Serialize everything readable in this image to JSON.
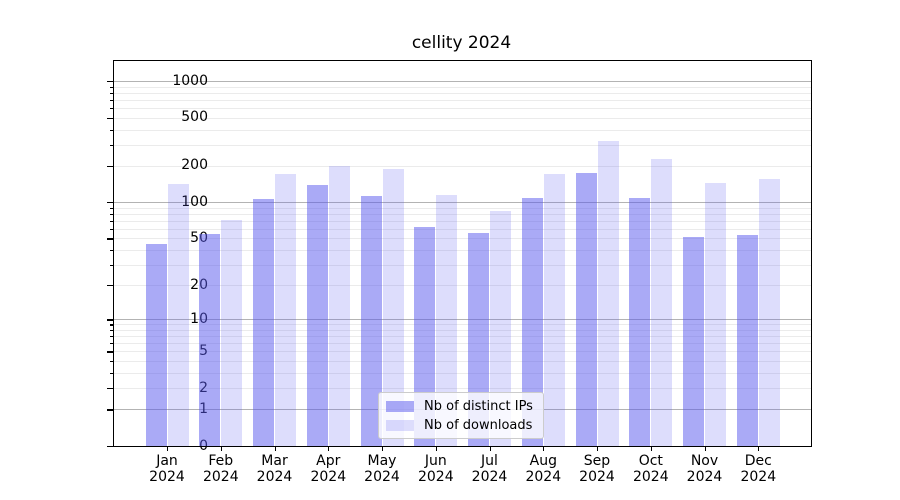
{
  "chart": {
    "title": "cellity 2024",
    "legend": {
      "position": "lower center",
      "items": [
        {
          "label": "Nb of distinct IPs",
          "series": "ips"
        },
        {
          "label": "Nb of downloads",
          "series": "downloads"
        }
      ]
    }
  },
  "chart_data": {
    "type": "bar",
    "title": "cellity 2024",
    "categories": [
      "Jan 2024",
      "Feb 2024",
      "Mar 2024",
      "Apr 2024",
      "May 2024",
      "Jun 2024",
      "Jul 2024",
      "Aug 2024",
      "Sep 2024",
      "Oct 2024",
      "Nov 2024",
      "Dec 2024"
    ],
    "series": [
      {
        "name": "Nb of distinct IPs",
        "values": [
          45,
          54,
          107,
          139,
          112,
          62,
          55,
          108,
          176,
          109,
          51,
          53
        ]
      },
      {
        "name": "Nb of downloads",
        "values": [
          143,
          71,
          172,
          200,
          189,
          115,
          85,
          172,
          320,
          230,
          144,
          155
        ]
      }
    ],
    "xlabel": "",
    "ylabel": "",
    "yscale": "log(1+x)",
    "ylim": [
      0,
      1500
    ],
    "y_ticks": [
      {
        "value": 1000,
        "label": "1000"
      },
      {
        "value": 500,
        "label": "500"
      },
      {
        "value": 200,
        "label": "200"
      },
      {
        "value": 100,
        "label": "100"
      },
      {
        "value": 50,
        "label": "50"
      },
      {
        "value": 20,
        "label": "20"
      },
      {
        "value": 10,
        "label": "10"
      },
      {
        "value": 5,
        "label": "5"
      },
      {
        "value": 2,
        "label": "2"
      },
      {
        "value": 1,
        "label": "1"
      },
      {
        "value": 0,
        "label": "0"
      }
    ],
    "minor_gridline_values": [
      2,
      3,
      4,
      5,
      6,
      7,
      8,
      9,
      20,
      30,
      40,
      50,
      60,
      70,
      80,
      90,
      200,
      300,
      400,
      500,
      600,
      700,
      800,
      900
    ],
    "major_gridline_values": [
      1,
      10,
      100,
      1000
    ],
    "grid": "horizontal major+minor",
    "legend_position": "lower center inside plot"
  },
  "x_axis": {
    "labels": [
      {
        "line1": "Jan",
        "line2": "2024"
      },
      {
        "line1": "Feb",
        "line2": "2024"
      },
      {
        "line1": "Mar",
        "line2": "2024"
      },
      {
        "line1": "Apr",
        "line2": "2024"
      },
      {
        "line1": "May",
        "line2": "2024"
      },
      {
        "line1": "Jun",
        "line2": "2024"
      },
      {
        "line1": "Jul",
        "line2": "2024"
      },
      {
        "line1": "Aug",
        "line2": "2024"
      },
      {
        "line1": "Sep",
        "line2": "2024"
      },
      {
        "line1": "Oct",
        "line2": "2024"
      },
      {
        "line1": "Nov",
        "line2": "2024"
      },
      {
        "line1": "Dec",
        "line2": "2024"
      }
    ]
  },
  "colors": {
    "bar_ips": "rgba(85,85,238,0.5)",
    "bar_downloads": "rgba(85,85,238,0.2)",
    "bar_base": "#5555ee",
    "grid_major": "#b3b3b3",
    "grid_minor": "#ebebeb",
    "spine": "#000000",
    "text": "#000000",
    "legend_border": "#cccccc"
  }
}
